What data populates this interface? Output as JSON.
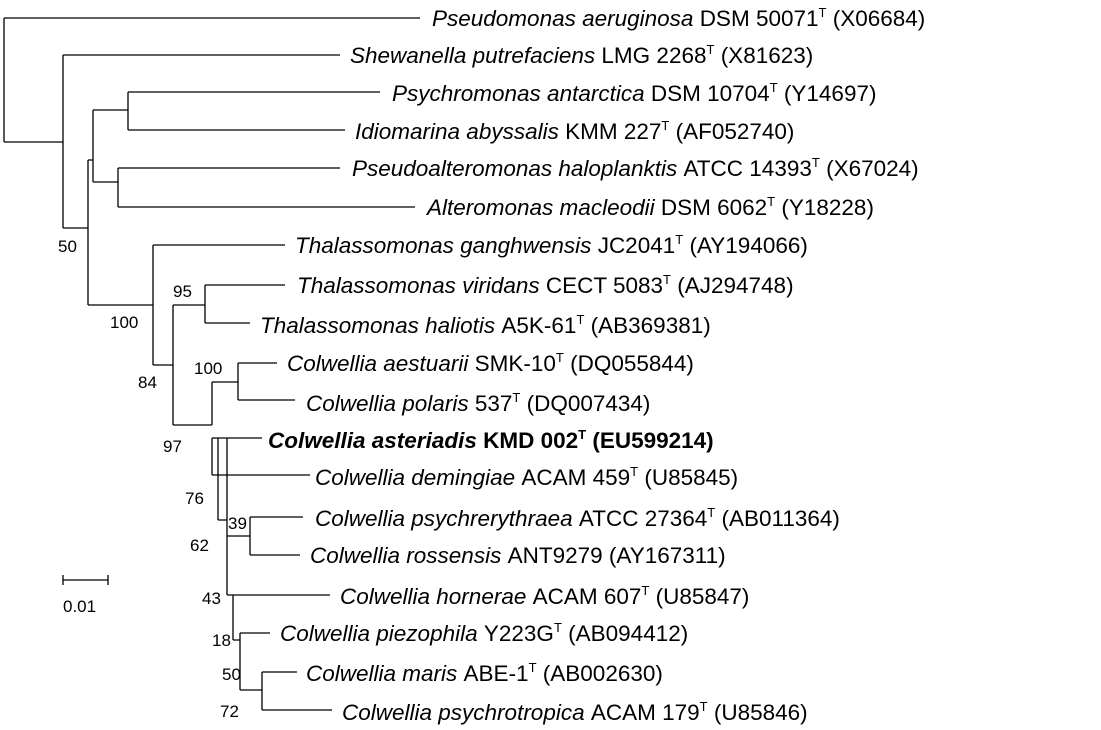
{
  "figure": {
    "scale_bar_label": "0.01",
    "type_mark": "T"
  },
  "taxa": [
    {
      "genus_species": "Pseudomonas aeruginosa",
      "strain": "DSM 50071",
      "type": true,
      "accession": "(X06684)",
      "bold": false
    },
    {
      "genus_species": "Shewanella putrefaciens",
      "strain": "LMG 2268",
      "type": true,
      "accession": "(X81623)",
      "bold": false
    },
    {
      "genus_species": "Psychromonas antarctica",
      "strain": "DSM 10704",
      "type": true,
      "accession": "(Y14697)",
      "bold": false
    },
    {
      "genus_species": "Idiomarina abyssalis",
      "strain": "KMM 227",
      "type": true,
      "accession": "(AF052740)",
      "bold": false
    },
    {
      "genus_species": "Pseudoalteromonas haloplanktis",
      "strain": "ATCC 14393",
      "type": true,
      "accession": "(X67024)",
      "bold": false
    },
    {
      "genus_species": "Alteromonas macleodii",
      "strain": "DSM 6062",
      "type": true,
      "accession": "(Y18228)",
      "bold": false
    },
    {
      "genus_species": "Thalassomonas ganghwensis",
      "strain": "JC2041",
      "type": true,
      "accession": "(AY194066)",
      "bold": false
    },
    {
      "genus_species": "Thalassomonas viridans",
      "strain": "CECT 5083",
      "type": true,
      "accession": "(AJ294748)",
      "bold": false
    },
    {
      "genus_species": "Thalassomonas haliotis",
      "strain": "A5K-61",
      "type": true,
      "accession": "(AB369381)",
      "bold": false
    },
    {
      "genus_species": "Colwellia aestuarii",
      "strain": "SMK-10",
      "type": true,
      "accession": "(DQ055844)",
      "bold": false
    },
    {
      "genus_species": "Colwellia polaris",
      "strain": "537",
      "type": true,
      "accession": "(DQ007434)",
      "bold": false
    },
    {
      "genus_species": "Colwellia asteriadis",
      "strain": "KMD 002",
      "type": true,
      "accession": "(EU599214)",
      "bold": true
    },
    {
      "genus_species": "Colwellia demingiae",
      "strain": "ACAM 459",
      "type": true,
      "accession": "(U85845)",
      "bold": false
    },
    {
      "genus_species": "Colwellia psychrerythraea",
      "strain": "ATCC 27364",
      "type": true,
      "accession": "(AB011364)",
      "bold": false
    },
    {
      "genus_species": "Colwellia rossensis",
      "strain": "ANT9279",
      "type": false,
      "accession": "(AY167311)",
      "bold": false
    },
    {
      "genus_species": "Colwellia hornerae",
      "strain": "ACAM 607",
      "type": true,
      "accession": "(U85847)",
      "bold": false
    },
    {
      "genus_species": "Colwellia piezophila",
      "strain": "Y223G",
      "type": true,
      "accession": "(AB094412)",
      "bold": false
    },
    {
      "genus_species": "Colwellia maris",
      "strain": "ABE-1",
      "type": true,
      "accession": "(AB002630)",
      "bold": false
    },
    {
      "genus_species": "Colwellia psychrotropica",
      "strain": "ACAM 179",
      "type": true,
      "accession": "(U85846)",
      "bold": false
    }
  ],
  "bootstrap_values": [
    "50",
    "100",
    "95",
    "84",
    "100",
    "97",
    "76",
    "62",
    "39",
    "43",
    "18",
    "50",
    "72"
  ]
}
